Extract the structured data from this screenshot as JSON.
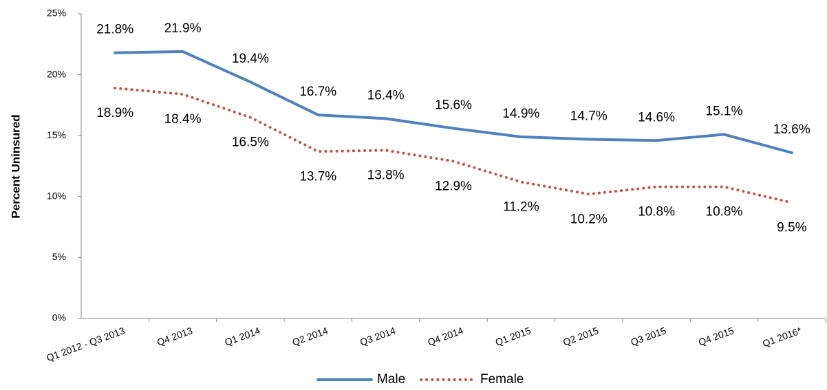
{
  "chart_data": {
    "type": "line",
    "y_label": "Percent Uninsured",
    "categories": [
      "Q1 2012 - Q3 2013",
      "Q4 2013",
      "Q1 2014",
      "Q2 2014",
      "Q3 2014",
      "Q4 2014",
      "Q1 2015",
      "Q2 2015",
      "Q3 2015",
      "Q4 2015",
      "Q1 2016*"
    ],
    "series": [
      {
        "name": "Male",
        "color": "#4f81bd",
        "dash": "solid",
        "values": [
          21.8,
          21.9,
          19.4,
          16.7,
          16.4,
          15.6,
          14.9,
          14.7,
          14.6,
          15.1,
          13.6
        ],
        "value_labels": [
          "21.8%",
          "21.9%",
          "19.4%",
          "16.7%",
          "16.4%",
          "15.6%",
          "14.9%",
          "14.7%",
          "14.6%",
          "15.1%",
          "13.6%"
        ]
      },
      {
        "name": "Female",
        "color": "#c0504d",
        "dash": "dotted",
        "values": [
          18.9,
          18.4,
          16.5,
          13.7,
          13.8,
          12.9,
          11.2,
          10.2,
          10.8,
          10.8,
          9.5
        ],
        "value_labels": [
          "18.9%",
          "18.4%",
          "16.5%",
          "13.7%",
          "13.8%",
          "12.9%",
          "11.2%",
          "10.2%",
          "10.8%",
          "10.8%",
          "9.5%"
        ]
      }
    ],
    "ylim": [
      0,
      25
    ],
    "yticks": [
      {
        "value": 0,
        "label": "0%"
      },
      {
        "value": 5,
        "label": "5%"
      },
      {
        "value": 10,
        "label": "10%"
      },
      {
        "value": 15,
        "label": "15%"
      },
      {
        "value": 20,
        "label": "20%"
      },
      {
        "value": 25,
        "label": "25%"
      }
    ],
    "grid": false,
    "legend": "bottom"
  }
}
